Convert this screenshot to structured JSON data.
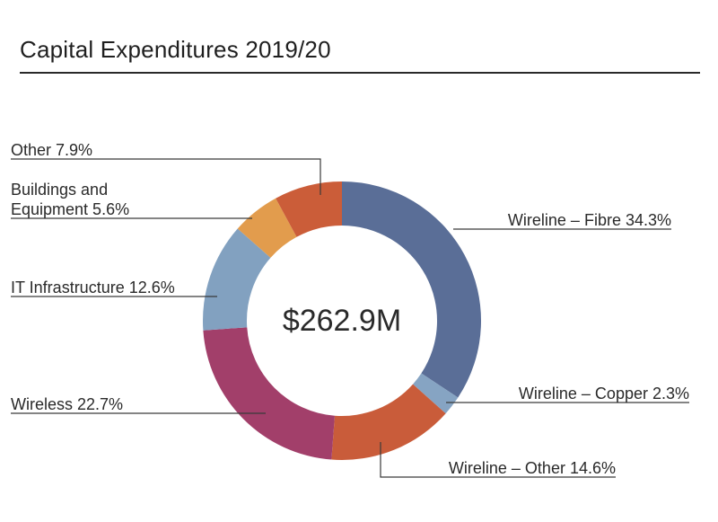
{
  "page": {
    "title": "Capital Expenditures 2019/20"
  },
  "chart_data": {
    "type": "donut",
    "title": "Capital Expenditures 2019/20",
    "center_label": "$262.9M",
    "unit": "%",
    "slices": [
      {
        "name": "Wireline – Fibre",
        "label": "Wireline – Fibre 34.3%",
        "value": 34.3,
        "color": "#5a6e97"
      },
      {
        "name": "Wireline – Copper",
        "label": "Wireline – Copper 2.3%",
        "value": 2.3,
        "color": "#86a4c3"
      },
      {
        "name": "Wireline – Other",
        "label": "Wireline – Other 14.6%",
        "value": 14.6,
        "color": "#c95c3a"
      },
      {
        "name": "Wireless",
        "label": "Wireless 22.7%",
        "value": 22.7,
        "color": "#a23f6a"
      },
      {
        "name": "IT Infrastructure",
        "label": "IT Infrastructure 12.6%",
        "value": 12.6,
        "color": "#82a1c0"
      },
      {
        "name": "Buildings and Equipment",
        "label_lines": [
          "Buildings and",
          "Equipment 5.6%"
        ],
        "value": 5.6,
        "color": "#e29c4d"
      },
      {
        "name": "Other",
        "label": "Other 7.9%",
        "value": 7.9,
        "color": "#cb5d39"
      }
    ]
  }
}
